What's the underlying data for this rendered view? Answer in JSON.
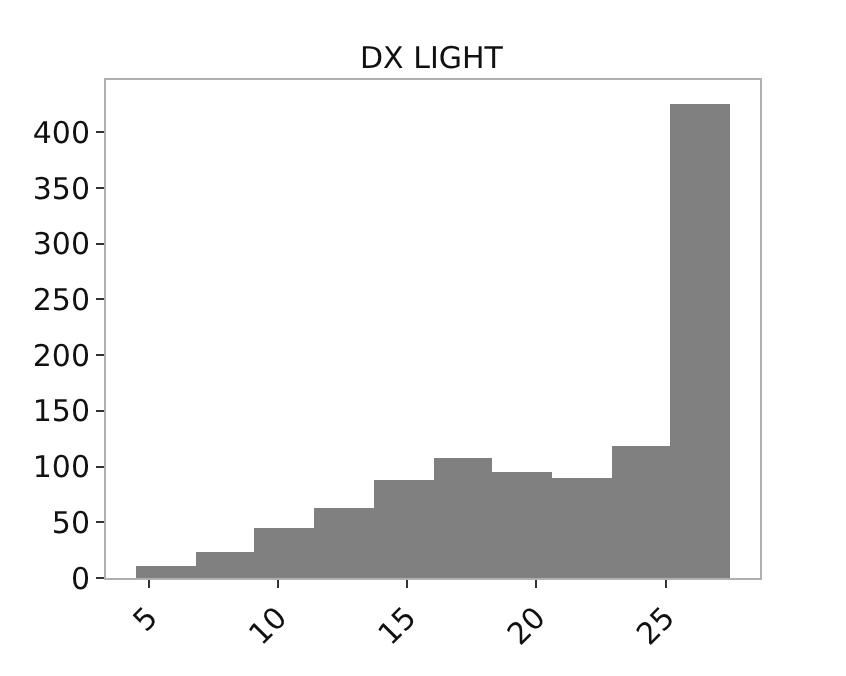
{
  "chart_data": {
    "type": "histogram",
    "title": "DX LIGHT",
    "bins": [
      4.5,
      6.8,
      9.1,
      11.4,
      13.7,
      16.0,
      18.3,
      20.6,
      22.9,
      25.2,
      27.5
    ],
    "values": [
      11,
      24,
      44,
      63,
      88,
      108,
      96,
      90,
      118,
      425
    ],
    "color": "#808080",
    "xlim": [
      3.35,
      28.65
    ],
    "xticks": [
      5,
      10,
      15,
      20,
      25
    ],
    "ylim": [
      0,
      447
    ],
    "yticks": [
      0,
      50,
      100,
      150,
      200,
      250,
      300,
      350,
      400
    ]
  }
}
